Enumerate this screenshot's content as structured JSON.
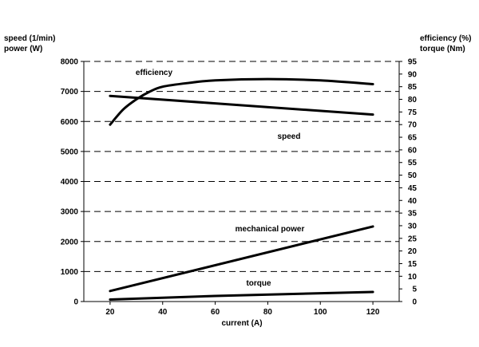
{
  "chart_data": {
    "type": "line",
    "left_axis_title": [
      "speed (1/min)",
      "power (W)"
    ],
    "right_axis_title": [
      "efficiency (%)",
      "torque (Nm)"
    ],
    "xlabel": "current (A)",
    "xlim": [
      10,
      130
    ],
    "x_ticks": [
      20,
      40,
      60,
      80,
      100,
      120
    ],
    "ylim_left": [
      0,
      8000
    ],
    "y_ticks_left": [
      0,
      1000,
      2000,
      3000,
      4000,
      5000,
      6000,
      7000,
      8000
    ],
    "ylim_right": [
      0,
      95
    ],
    "y_ticks_right": [
      0,
      5,
      10,
      15,
      20,
      25,
      30,
      35,
      40,
      45,
      50,
      55,
      60,
      65,
      70,
      75,
      80,
      85,
      90,
      95
    ],
    "grid": "dashed horizontal",
    "legend": "none",
    "series": [
      {
        "name": "efficiency",
        "axis": "right",
        "x": [
          20,
          25,
          30,
          35,
          40,
          50,
          60,
          80,
          100,
          120
        ],
        "y": [
          70,
          76,
          80,
          83,
          85,
          86.5,
          87.5,
          88,
          87.5,
          86
        ]
      },
      {
        "name": "speed",
        "axis": "left",
        "x": [
          20,
          120
        ],
        "y": [
          6850,
          6230
        ]
      },
      {
        "name": "mechanical power",
        "axis": "left",
        "x": [
          20,
          120
        ],
        "y": [
          350,
          2500
        ]
      },
      {
        "name": "torque",
        "axis": "right",
        "x": [
          20,
          60,
          120
        ],
        "y": [
          0.8,
          2.2,
          3.8
        ]
      }
    ]
  }
}
